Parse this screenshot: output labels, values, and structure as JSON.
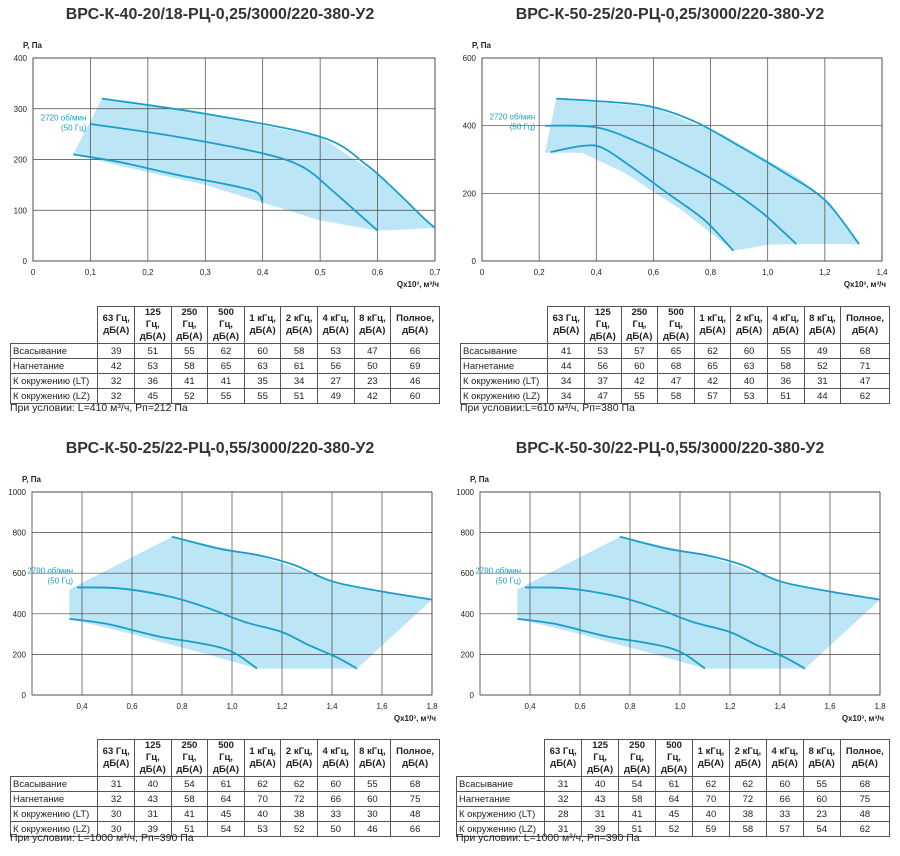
{
  "colors": {
    "fill": "#b5e3f5",
    "curve": "#1a9ec9",
    "grid": "#444444",
    "annotation": "#1a9ec9"
  },
  "chart_data": [
    {
      "type": "line",
      "title": "ВРС-К-40-20/18-РЦ-0,25/3000/220-380-У2",
      "ylabel": "P, Па",
      "xlabel": "Qx10³, м³/ч",
      "xlim": [
        0,
        0.7
      ],
      "ylim": [
        0,
        400
      ],
      "xticks": [
        "0",
        "0,1",
        "0,2",
        "0,3",
        "0,4",
        "0,5",
        "0,6",
        "0,7"
      ],
      "yticks": [
        "0",
        "100",
        "200",
        "300",
        "400"
      ],
      "xtick_values": [
        0,
        0.1,
        0.2,
        0.3,
        0.4,
        0.5,
        0.6,
        0.7
      ],
      "ytick_values": [
        0,
        100,
        200,
        300,
        400
      ],
      "annotation": [
        "2720 об/мин",
        "(50 Гц)"
      ],
      "annotation_at": [
        0.1,
        265
      ],
      "region": [
        [
          0.07,
          210
        ],
        [
          0.12,
          320
        ],
        [
          0.3,
          290
        ],
        [
          0.5,
          245
        ],
        [
          0.6,
          170
        ],
        [
          0.65,
          115
        ],
        [
          0.7,
          65
        ],
        [
          0.6,
          60
        ],
        [
          0.5,
          80
        ],
        [
          0.4,
          115
        ],
        [
          0.3,
          150
        ],
        [
          0.2,
          175
        ],
        [
          0.07,
          210
        ]
      ],
      "curves": [
        [
          [
            0.12,
            320
          ],
          [
            0.3,
            290
          ],
          [
            0.5,
            245
          ],
          [
            0.58,
            190
          ],
          [
            0.63,
            140
          ],
          [
            0.68,
            85
          ],
          [
            0.7,
            65
          ]
        ],
        [
          [
            0.1,
            270
          ],
          [
            0.25,
            245
          ],
          [
            0.4,
            212
          ],
          [
            0.47,
            185
          ],
          [
            0.52,
            140
          ],
          [
            0.57,
            90
          ],
          [
            0.6,
            60
          ]
        ],
        [
          [
            0.07,
            210
          ],
          [
            0.15,
            195
          ],
          [
            0.25,
            170
          ],
          [
            0.35,
            148
          ],
          [
            0.39,
            135
          ],
          [
            0.4,
            115
          ]
        ]
      ],
      "table": {
        "headers": [
          "63 Гц, дБ(А)",
          "125 Гц, дБ(А)",
          "250 Гц, дБ(А)",
          "500 Гц, дБ(А)",
          "1 кГц, дБ(А)",
          "2 кГц, дБ(А)",
          "4 кГц, дБ(А)",
          "8 кГц, дБ(А)",
          "Полное, дБ(А)"
        ],
        "rows": [
          {
            "label": "Всасывание",
            "values": [
              "39",
              "51",
              "55",
              "62",
              "60",
              "58",
              "53",
              "47",
              "66"
            ]
          },
          {
            "label": "Нагнетание",
            "values": [
              "42",
              "53",
              "58",
              "65",
              "63",
              "61",
              "56",
              "50",
              "69"
            ]
          },
          {
            "label": "К окружению (LT)",
            "values": [
              "32",
              "36",
              "41",
              "41",
              "35",
              "34",
              "27",
              "23",
              "46"
            ]
          },
          {
            "label": "К окружению (LZ)",
            "values": [
              "32",
              "45",
              "52",
              "55",
              "55",
              "51",
              "49",
              "42",
              "60"
            ]
          }
        ]
      },
      "condition": "При условии: L=410 м³/ч, Pп=212 Па"
    },
    {
      "type": "line",
      "title": "ВРС-К-50-25/20-РЦ-0,25/3000/220-380-У2",
      "ylabel": "P, Па",
      "xlabel": "Qx10³, м³/ч",
      "xlim": [
        0,
        1.4
      ],
      "ylim": [
        0,
        600
      ],
      "xticks": [
        "0",
        "0,2",
        "0,4",
        "0,6",
        "0,8",
        "1,0",
        "1,2",
        "1,4"
      ],
      "yticks": [
        "0",
        "200",
        "400",
        "600"
      ],
      "xtick_values": [
        0,
        0.2,
        0.4,
        0.6,
        0.8,
        1.0,
        1.2,
        1.4
      ],
      "ytick_values": [
        0,
        200,
        400,
        600
      ],
      "annotation": [
        "2720 об/мин",
        "(50 Гц)"
      ],
      "annotation_at": [
        0.2,
        400
      ],
      "region": [
        [
          0.22,
          320
        ],
        [
          0.26,
          480
        ],
        [
          0.6,
          455
        ],
        [
          0.85,
          370
        ],
        [
          1.1,
          250
        ],
        [
          1.22,
          170
        ],
        [
          1.32,
          50
        ],
        [
          1.1,
          50
        ],
        [
          1.0,
          48
        ],
        [
          0.88,
          30
        ],
        [
          0.7,
          150
        ],
        [
          0.5,
          260
        ],
        [
          0.35,
          320
        ],
        [
          0.22,
          320
        ]
      ],
      "curves": [
        [
          [
            0.26,
            480
          ],
          [
            0.45,
            470
          ],
          [
            0.6,
            455
          ],
          [
            0.75,
            410
          ],
          [
            0.9,
            340
          ],
          [
            1.05,
            265
          ],
          [
            1.2,
            180
          ],
          [
            1.32,
            50
          ]
        ],
        [
          [
            0.22,
            400
          ],
          [
            0.4,
            395
          ],
          [
            0.55,
            350
          ],
          [
            0.7,
            290
          ],
          [
            0.85,
            220
          ],
          [
            0.97,
            150
          ],
          [
            1.05,
            90
          ],
          [
            1.1,
            50
          ]
        ],
        [
          [
            0.24,
            322
          ],
          [
            0.35,
            340
          ],
          [
            0.42,
            335
          ],
          [
            0.52,
            280
          ],
          [
            0.65,
            200
          ],
          [
            0.78,
            120
          ],
          [
            0.88,
            30
          ]
        ]
      ],
      "table": {
        "headers": [
          "63 Гц, дБ(А)",
          "125 Гц, дБ(А)",
          "250 Гц, дБ(А)",
          "500 Гц, дБ(А)",
          "1 кГц, дБ(А)",
          "2 кГц, дБ(А)",
          "4 кГц, дБ(А)",
          "8 кГц, дБ(А)",
          "Полное, дБ(А)"
        ],
        "rows": [
          {
            "label": "Всасывание",
            "values": [
              "41",
              "53",
              "57",
              "65",
              "62",
              "60",
              "55",
              "49",
              "68"
            ]
          },
          {
            "label": "Нагнетание",
            "values": [
              "44",
              "56",
              "60",
              "68",
              "65",
              "63",
              "58",
              "52",
              "71"
            ]
          },
          {
            "label": "К окружению (LT)",
            "values": [
              "34",
              "37",
              "42",
              "47",
              "42",
              "40",
              "36",
              "31",
              "47"
            ]
          },
          {
            "label": "К окружению (LZ)",
            "values": [
              "34",
              "47",
              "55",
              "58",
              "57",
              "53",
              "51",
              "44",
              "62"
            ]
          }
        ]
      },
      "condition": "При условии:L=610 м³/ч, Pп=380 Па"
    },
    {
      "type": "line",
      "title": "ВРС-К-50-25/22-РЦ-0,55/3000/220-380-У2",
      "ylabel": "P, Па",
      "xlabel": "Qx10³, м³/ч",
      "xlim": [
        0.2,
        1.8
      ],
      "ylim": [
        0,
        1000
      ],
      "xticks": [
        "0,4",
        "0,6",
        "0,8",
        "1,0",
        "1,2",
        "1,4",
        "1,6",
        "1,8"
      ],
      "yticks": [
        "0",
        "200",
        "400",
        "600",
        "800",
        "1000"
      ],
      "xtick_values": [
        0.4,
        0.6,
        0.8,
        1.0,
        1.2,
        1.4,
        1.6,
        1.8
      ],
      "ytick_values": [
        0,
        200,
        400,
        600,
        800,
        1000
      ],
      "annotation": [
        "2790 об/мин",
        "(50 Гц)"
      ],
      "annotation_at": [
        0.38,
        570
      ],
      "region": [
        [
          0.35,
          375
        ],
        [
          0.35,
          520
        ],
        [
          0.76,
          780
        ],
        [
          1.1,
          690
        ],
        [
          1.4,
          560
        ],
        [
          1.6,
          510
        ],
        [
          1.8,
          470
        ],
        [
          1.5,
          130
        ],
        [
          1.1,
          130
        ],
        [
          0.9,
          200
        ],
        [
          0.6,
          300
        ],
        [
          0.35,
          375
        ]
      ],
      "curves": [
        [
          [
            0.76,
            780
          ],
          [
            0.95,
            720
          ],
          [
            1.1,
            690
          ],
          [
            1.25,
            640
          ],
          [
            1.4,
            560
          ],
          [
            1.6,
            510
          ],
          [
            1.8,
            470
          ]
        ],
        [
          [
            0.38,
            530
          ],
          [
            0.55,
            525
          ],
          [
            0.75,
            485
          ],
          [
            0.9,
            430
          ],
          [
            1.05,
            360
          ],
          [
            1.2,
            310
          ],
          [
            1.3,
            250
          ],
          [
            1.42,
            185
          ],
          [
            1.5,
            130
          ]
        ],
        [
          [
            0.35,
            375
          ],
          [
            0.5,
            350
          ],
          [
            0.7,
            290
          ],
          [
            0.85,
            260
          ],
          [
            0.95,
            235
          ],
          [
            1.02,
            200
          ],
          [
            1.1,
            130
          ]
        ]
      ],
      "table": {
        "headers": [
          "63 Гц, дБ(А)",
          "125 Гц, дБ(А)",
          "250 Гц, дБ(А)",
          "500 Гц, дБ(А)",
          "1 кГц, дБ(А)",
          "2 кГц, дБ(А)",
          "4 кГц, дБ(А)",
          "8 кГц, дБ(А)",
          "Полное, дБ(А)"
        ],
        "rows": [
          {
            "label": "Всасывание",
            "values": [
              "31",
              "40",
              "54",
              "61",
              "62",
              "62",
              "60",
              "55",
              "68"
            ]
          },
          {
            "label": "Нагнетание",
            "values": [
              "32",
              "43",
              "58",
              "64",
              "70",
              "72",
              "66",
              "60",
              "75"
            ]
          },
          {
            "label": "К окружению (LT)",
            "values": [
              "30",
              "31",
              "41",
              "45",
              "40",
              "38",
              "33",
              "30",
              "48"
            ]
          },
          {
            "label": "К окружению (LZ)",
            "values": [
              "30",
              "39",
              "51",
              "54",
              "53",
              "52",
              "50",
              "46",
              "66"
            ]
          }
        ]
      },
      "condition": "При условии: L=1000 м³/ч, Pп=390 Па"
    },
    {
      "type": "line",
      "title": "ВРС-К-50-30/22-РЦ-0,55/3000/220-380-У2",
      "ylabel": "P, Па",
      "xlabel": "Qx10³, м³/ч",
      "xlim": [
        0.2,
        1.8
      ],
      "ylim": [
        0,
        1000
      ],
      "xticks": [
        "0,4",
        "0,6",
        "0,8",
        "1,0",
        "1,2",
        "1,4",
        "1,6",
        "1,8"
      ],
      "yticks": [
        "0",
        "200",
        "400",
        "600",
        "800",
        "1000"
      ],
      "xtick_values": [
        0.4,
        0.6,
        0.8,
        1.0,
        1.2,
        1.4,
        1.6,
        1.8
      ],
      "ytick_values": [
        0,
        200,
        400,
        600,
        800,
        1000
      ],
      "annotation": [
        "2790 об/мин",
        "(50 Гц)"
      ],
      "annotation_at": [
        0.38,
        570
      ],
      "region": [
        [
          0.35,
          375
        ],
        [
          0.35,
          520
        ],
        [
          0.76,
          780
        ],
        [
          1.1,
          690
        ],
        [
          1.4,
          560
        ],
        [
          1.6,
          510
        ],
        [
          1.8,
          470
        ],
        [
          1.5,
          130
        ],
        [
          1.1,
          130
        ],
        [
          0.9,
          200
        ],
        [
          0.6,
          300
        ],
        [
          0.35,
          375
        ]
      ],
      "curves": [
        [
          [
            0.76,
            780
          ],
          [
            0.95,
            720
          ],
          [
            1.1,
            690
          ],
          [
            1.25,
            640
          ],
          [
            1.4,
            560
          ],
          [
            1.6,
            510
          ],
          [
            1.8,
            470
          ]
        ],
        [
          [
            0.38,
            530
          ],
          [
            0.55,
            525
          ],
          [
            0.75,
            485
          ],
          [
            0.9,
            430
          ],
          [
            1.05,
            360
          ],
          [
            1.2,
            310
          ],
          [
            1.3,
            250
          ],
          [
            1.42,
            185
          ],
          [
            1.5,
            130
          ]
        ],
        [
          [
            0.35,
            375
          ],
          [
            0.5,
            350
          ],
          [
            0.7,
            290
          ],
          [
            0.85,
            260
          ],
          [
            0.95,
            235
          ],
          [
            1.02,
            200
          ],
          [
            1.1,
            130
          ]
        ]
      ],
      "table": {
        "headers": [
          "63 Гц, дБ(А)",
          "125 Гц, дБ(А)",
          "250 Гц, дБ(А)",
          "500 Гц, дБ(А)",
          "1 кГц, дБ(А)",
          "2 кГц, дБ(А)",
          "4 кГц, дБ(А)",
          "8 кГц, дБ(А)",
          "Полное, дБ(А)"
        ],
        "rows": [
          {
            "label": "Всасывание",
            "values": [
              "31",
              "40",
              "54",
              "61",
              "62",
              "62",
              "60",
              "55",
              "68"
            ]
          },
          {
            "label": "Нагнетание",
            "values": [
              "32",
              "43",
              "58",
              "64",
              "70",
              "72",
              "66",
              "60",
              "75"
            ]
          },
          {
            "label": "К окружению (LT)",
            "values": [
              "28",
              "31",
              "41",
              "45",
              "40",
              "38",
              "33",
              "23",
              "48"
            ]
          },
          {
            "label": "К окружению (LZ)",
            "values": [
              "31",
              "39",
              "51",
              "52",
              "59",
              "58",
              "57",
              "54",
              "62"
            ]
          }
        ]
      },
      "condition": "При условии: L=1000 м³/ч, Pп=390 Па"
    }
  ]
}
